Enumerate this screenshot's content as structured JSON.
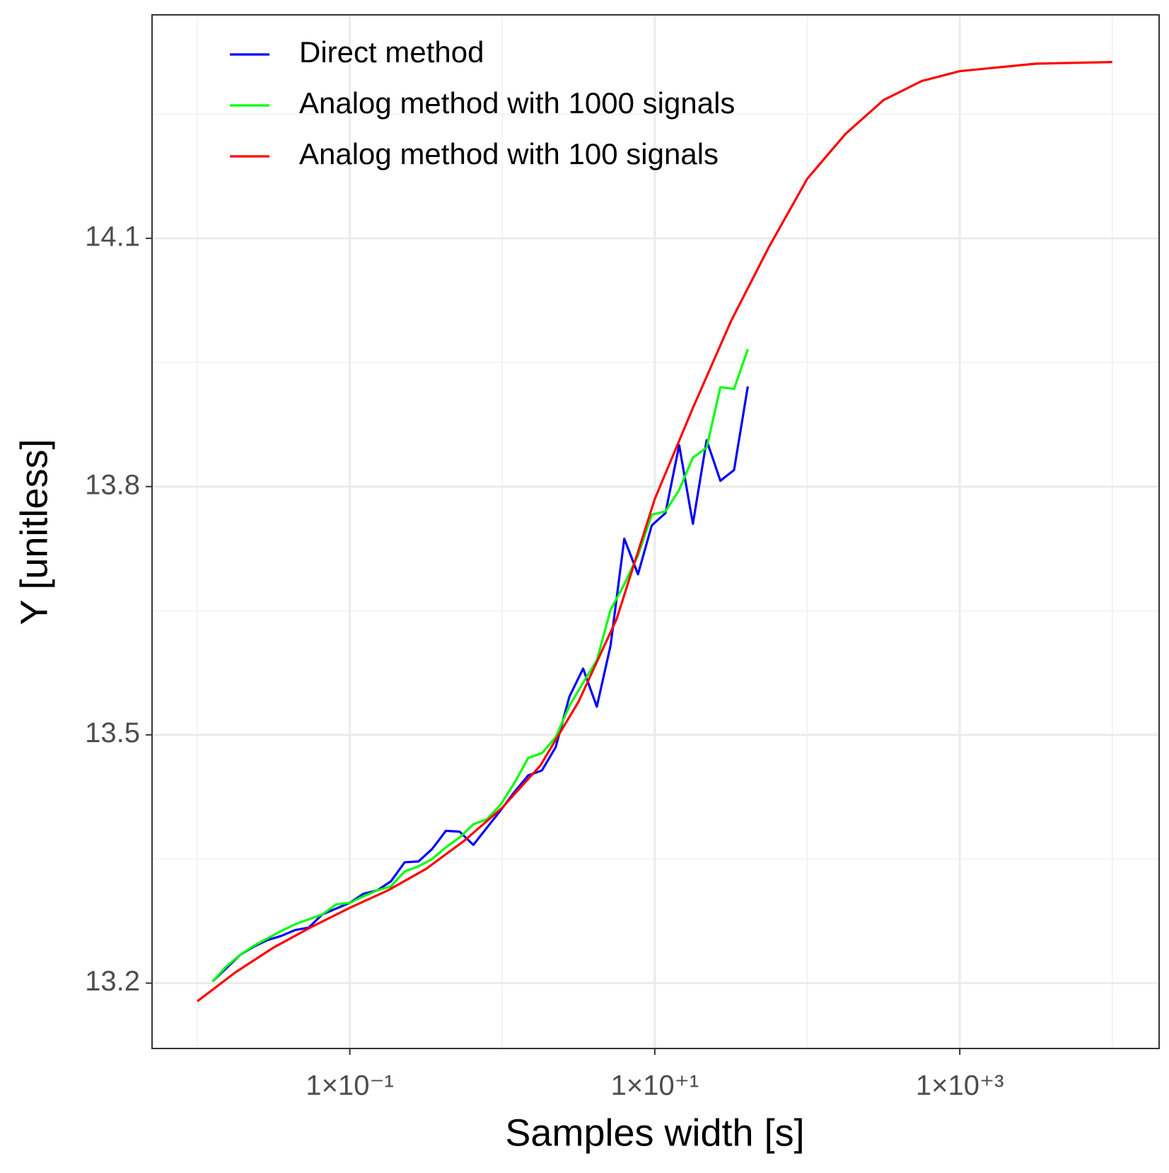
{
  "chart_data": {
    "type": "line",
    "x_label": "Samples width [s]",
    "y_label": "Y [unitless]",
    "xscale": "log",
    "xlim": [
      0.00505,
      20280
    ],
    "ylim": [
      13.121,
      14.37
    ],
    "xticks": [
      {
        "value": 0.1,
        "label": "1×10⁻¹"
      },
      {
        "value": 10,
        "label": "1×10⁺¹"
      },
      {
        "value": 1000,
        "label": "1×10⁺³"
      }
    ],
    "xminor": [
      0.01,
      1,
      100,
      10000
    ],
    "yticks": [
      13.2,
      13.5,
      13.8,
      14.1
    ],
    "yminor": [
      13.35,
      13.65,
      13.95,
      14.25
    ],
    "grid": true,
    "legend": "top-left",
    "series": [
      {
        "name": "Direct method",
        "color": "#0000ff",
        "x": [
          0.01259,
          0.01549,
          0.01905,
          0.02344,
          0.02884,
          0.03548,
          0.04365,
          0.0537,
          0.06607,
          0.08128,
          0.1,
          0.123,
          0.1514,
          0.1862,
          0.2291,
          0.2818,
          0.3467,
          0.4266,
          0.5248,
          0.6457,
          0.7943,
          0.9772,
          1.202,
          1.479,
          1.82,
          2.239,
          2.754,
          3.388,
          4.169,
          5.129,
          6.31,
          7.762,
          9.55,
          11.75,
          14.45,
          17.78,
          21.88,
          26.92,
          33.11,
          40.74
        ],
        "values": [
          13.202,
          13.218,
          13.234,
          13.244,
          13.252,
          13.257,
          13.264,
          13.267,
          13.283,
          13.29,
          13.297,
          13.308,
          13.312,
          13.323,
          13.346,
          13.347,
          13.362,
          13.384,
          13.383,
          13.367,
          13.388,
          13.409,
          13.431,
          13.451,
          13.457,
          13.485,
          13.546,
          13.58,
          13.534,
          13.608,
          13.737,
          13.694,
          13.753,
          13.768,
          13.85,
          13.755,
          13.856,
          13.807,
          13.82,
          13.921
        ]
      },
      {
        "name": "Analog method with 1000 signals",
        "color": "#00ff00",
        "x": [
          0.01259,
          0.01549,
          0.01905,
          0.02344,
          0.02884,
          0.03548,
          0.04365,
          0.0537,
          0.06607,
          0.08128,
          0.1,
          0.123,
          0.1514,
          0.1862,
          0.2291,
          0.2818,
          0.3467,
          0.4266,
          0.5248,
          0.6457,
          0.7943,
          0.9772,
          1.202,
          1.479,
          1.82,
          2.239,
          2.754,
          3.388,
          4.169,
          5.129,
          6.31,
          7.762,
          9.55,
          11.75,
          14.45,
          17.78,
          21.88,
          26.92,
          33.11,
          40.74
        ],
        "values": [
          13.202,
          13.22,
          13.234,
          13.245,
          13.254,
          13.263,
          13.271,
          13.277,
          13.283,
          13.295,
          13.297,
          13.305,
          13.312,
          13.317,
          13.335,
          13.341,
          13.35,
          13.364,
          13.376,
          13.392,
          13.398,
          13.416,
          13.442,
          13.472,
          13.478,
          13.497,
          13.535,
          13.563,
          13.59,
          13.651,
          13.682,
          13.717,
          13.766,
          13.77,
          13.796,
          13.835,
          13.847,
          13.92,
          13.918,
          13.966
        ]
      },
      {
        "name": "Analog method with 100 signals",
        "color": "#ff0000",
        "x": [
          0.01,
          0.01778,
          0.03162,
          0.05623,
          0.1,
          0.1778,
          0.3162,
          0.5623,
          1,
          1.778,
          3.162,
          5.623,
          10,
          17.78,
          31.62,
          56.23,
          100,
          177.8,
          316.2,
          562.3,
          1000,
          3162,
          10000
        ],
        "values": [
          13.178,
          13.213,
          13.243,
          13.268,
          13.291,
          13.312,
          13.338,
          13.372,
          13.412,
          13.463,
          13.54,
          13.64,
          13.785,
          13.895,
          14.0,
          14.09,
          14.172,
          14.226,
          14.267,
          14.29,
          14.302,
          14.311,
          14.313
        ]
      }
    ]
  }
}
